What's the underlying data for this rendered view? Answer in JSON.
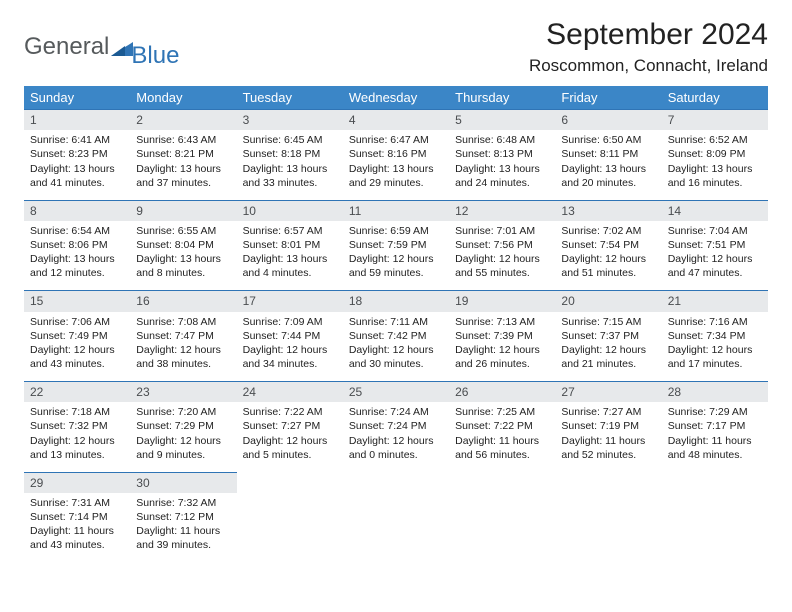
{
  "brand": {
    "part1": "General",
    "part2": "Blue"
  },
  "title": "September 2024",
  "location": "Roscommon, Connacht, Ireland",
  "header_bg": "#3b86c7",
  "accent": "#2f74b5",
  "dayheaders": [
    "Sunday",
    "Monday",
    "Tuesday",
    "Wednesday",
    "Thursday",
    "Friday",
    "Saturday"
  ],
  "weeks": [
    [
      {
        "n": "1",
        "sr": "6:41 AM",
        "ss": "8:23 PM",
        "dl": "13 hours and 41 minutes."
      },
      {
        "n": "2",
        "sr": "6:43 AM",
        "ss": "8:21 PM",
        "dl": "13 hours and 37 minutes."
      },
      {
        "n": "3",
        "sr": "6:45 AM",
        "ss": "8:18 PM",
        "dl": "13 hours and 33 minutes."
      },
      {
        "n": "4",
        "sr": "6:47 AM",
        "ss": "8:16 PM",
        "dl": "13 hours and 29 minutes."
      },
      {
        "n": "5",
        "sr": "6:48 AM",
        "ss": "8:13 PM",
        "dl": "13 hours and 24 minutes."
      },
      {
        "n": "6",
        "sr": "6:50 AM",
        "ss": "8:11 PM",
        "dl": "13 hours and 20 minutes."
      },
      {
        "n": "7",
        "sr": "6:52 AM",
        "ss": "8:09 PM",
        "dl": "13 hours and 16 minutes."
      }
    ],
    [
      {
        "n": "8",
        "sr": "6:54 AM",
        "ss": "8:06 PM",
        "dl": "13 hours and 12 minutes."
      },
      {
        "n": "9",
        "sr": "6:55 AM",
        "ss": "8:04 PM",
        "dl": "13 hours and 8 minutes."
      },
      {
        "n": "10",
        "sr": "6:57 AM",
        "ss": "8:01 PM",
        "dl": "13 hours and 4 minutes."
      },
      {
        "n": "11",
        "sr": "6:59 AM",
        "ss": "7:59 PM",
        "dl": "12 hours and 59 minutes."
      },
      {
        "n": "12",
        "sr": "7:01 AM",
        "ss": "7:56 PM",
        "dl": "12 hours and 55 minutes."
      },
      {
        "n": "13",
        "sr": "7:02 AM",
        "ss": "7:54 PM",
        "dl": "12 hours and 51 minutes."
      },
      {
        "n": "14",
        "sr": "7:04 AM",
        "ss": "7:51 PM",
        "dl": "12 hours and 47 minutes."
      }
    ],
    [
      {
        "n": "15",
        "sr": "7:06 AM",
        "ss": "7:49 PM",
        "dl": "12 hours and 43 minutes."
      },
      {
        "n": "16",
        "sr": "7:08 AM",
        "ss": "7:47 PM",
        "dl": "12 hours and 38 minutes."
      },
      {
        "n": "17",
        "sr": "7:09 AM",
        "ss": "7:44 PM",
        "dl": "12 hours and 34 minutes."
      },
      {
        "n": "18",
        "sr": "7:11 AM",
        "ss": "7:42 PM",
        "dl": "12 hours and 30 minutes."
      },
      {
        "n": "19",
        "sr": "7:13 AM",
        "ss": "7:39 PM",
        "dl": "12 hours and 26 minutes."
      },
      {
        "n": "20",
        "sr": "7:15 AM",
        "ss": "7:37 PM",
        "dl": "12 hours and 21 minutes."
      },
      {
        "n": "21",
        "sr": "7:16 AM",
        "ss": "7:34 PM",
        "dl": "12 hours and 17 minutes."
      }
    ],
    [
      {
        "n": "22",
        "sr": "7:18 AM",
        "ss": "7:32 PM",
        "dl": "12 hours and 13 minutes."
      },
      {
        "n": "23",
        "sr": "7:20 AM",
        "ss": "7:29 PM",
        "dl": "12 hours and 9 minutes."
      },
      {
        "n": "24",
        "sr": "7:22 AM",
        "ss": "7:27 PM",
        "dl": "12 hours and 5 minutes."
      },
      {
        "n": "25",
        "sr": "7:24 AM",
        "ss": "7:24 PM",
        "dl": "12 hours and 0 minutes."
      },
      {
        "n": "26",
        "sr": "7:25 AM",
        "ss": "7:22 PM",
        "dl": "11 hours and 56 minutes."
      },
      {
        "n": "27",
        "sr": "7:27 AM",
        "ss": "7:19 PM",
        "dl": "11 hours and 52 minutes."
      },
      {
        "n": "28",
        "sr": "7:29 AM",
        "ss": "7:17 PM",
        "dl": "11 hours and 48 minutes."
      }
    ],
    [
      {
        "n": "29",
        "sr": "7:31 AM",
        "ss": "7:14 PM",
        "dl": "11 hours and 43 minutes."
      },
      {
        "n": "30",
        "sr": "7:32 AM",
        "ss": "7:12 PM",
        "dl": "11 hours and 39 minutes."
      },
      null,
      null,
      null,
      null,
      null
    ]
  ],
  "labels": {
    "sunrise": "Sunrise: ",
    "sunset": "Sunset: ",
    "daylight": "Daylight: "
  }
}
